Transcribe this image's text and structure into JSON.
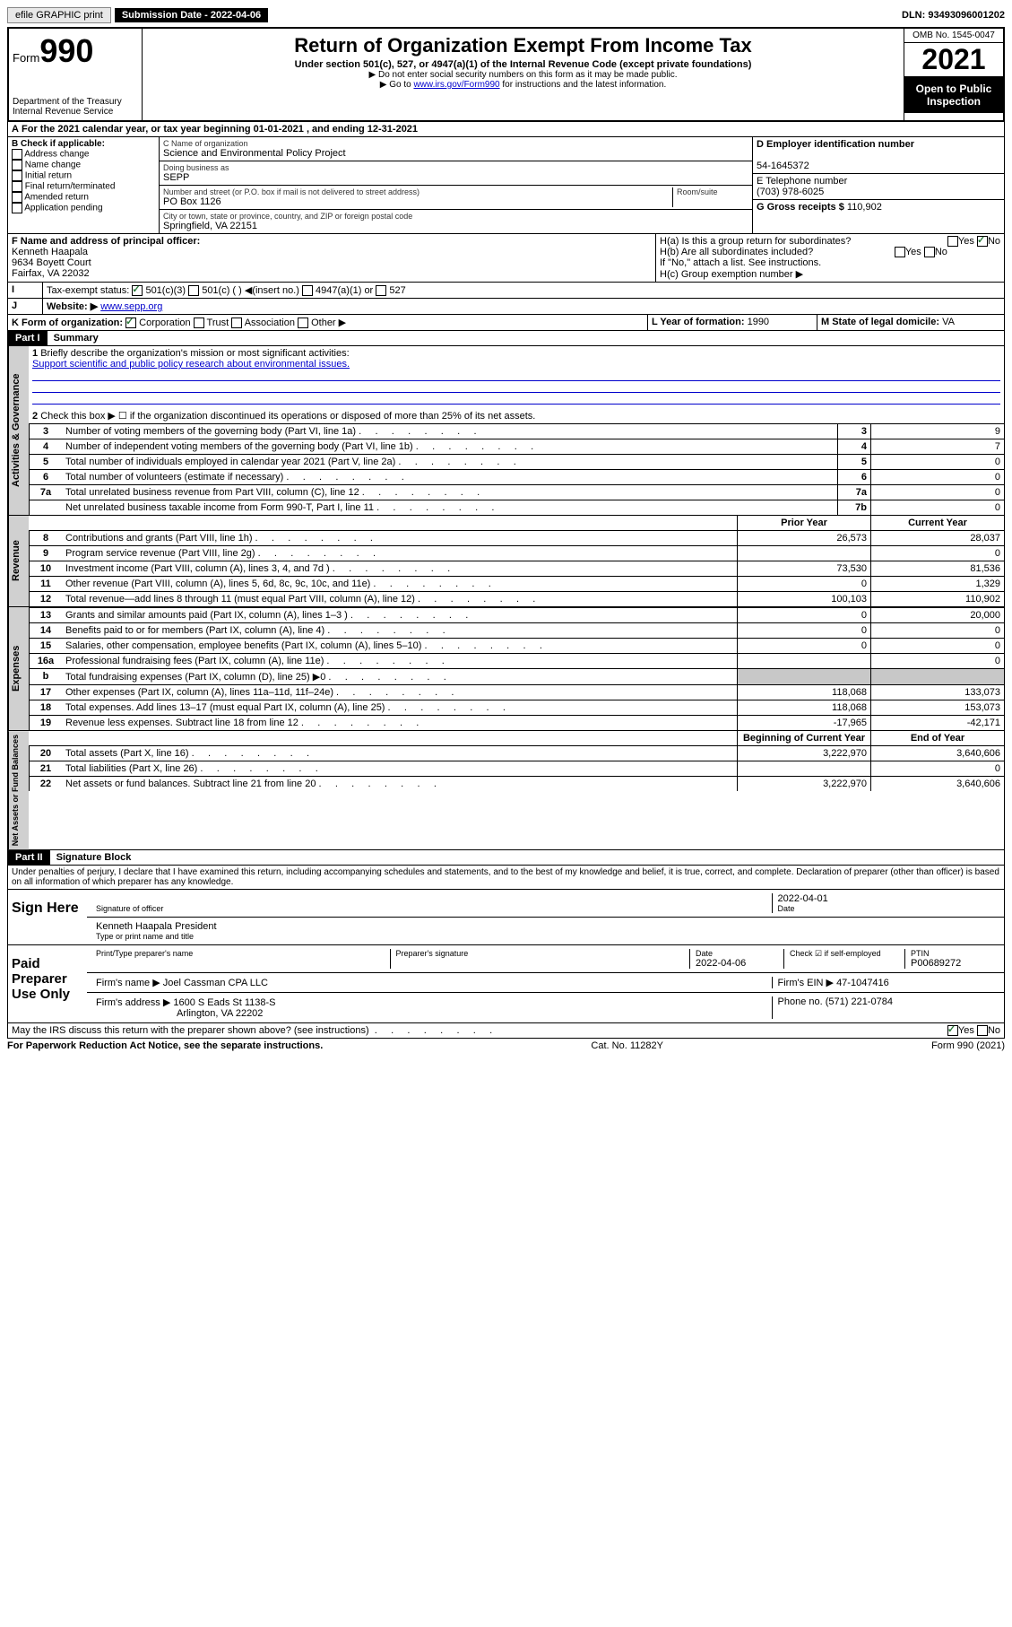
{
  "topbar": {
    "efile": "efile GRAPHIC print",
    "submission": "Submission Date - 2022-04-06",
    "dln": "DLN: 93493096001202"
  },
  "header": {
    "form_label": "Form",
    "form_no": "990",
    "title": "Return of Organization Exempt From Income Tax",
    "subtitle": "Under section 501(c), 527, or 4947(a)(1) of the Internal Revenue Code (except private foundations)",
    "note1": "▶ Do not enter social security numbers on this form as it may be made public.",
    "note2_pre": "▶ Go to ",
    "note2_link": "www.irs.gov/Form990",
    "note2_post": " for instructions and the latest information.",
    "dept": "Department of the Treasury",
    "irs": "Internal Revenue Service",
    "omb": "OMB No. 1545-0047",
    "year": "2021",
    "open": "Open to Public Inspection"
  },
  "lineA": "For the 2021 calendar year, or tax year beginning 01-01-2021   , and ending 12-31-2021",
  "boxB": {
    "title": "B Check if applicable:",
    "items": [
      "Address change",
      "Name change",
      "Initial return",
      "Final return/terminated",
      "Amended return",
      "Application pending"
    ]
  },
  "boxC": {
    "label_name": "C Name of organization",
    "name": "Science and Environmental Policy Project",
    "dba_label": "Doing business as",
    "dba": "SEPP",
    "street_label": "Number and street (or P.O. box if mail is not delivered to street address)",
    "room_label": "Room/suite",
    "street": "PO Box 1126",
    "city_label": "City or town, state or province, country, and ZIP or foreign postal code",
    "city": "Springfield, VA  22151"
  },
  "boxD": {
    "label": "D Employer identification number",
    "value": "54-1645372"
  },
  "boxE": {
    "label": "E Telephone number",
    "value": "(703) 978-6025"
  },
  "boxG": {
    "label": "G Gross receipts $",
    "value": "110,902"
  },
  "boxF": {
    "label": "F Name and address of principal officer:",
    "name": "Kenneth Haapala",
    "addr1": "9634 Boyett Court",
    "addr2": "Fairfax, VA  22032"
  },
  "boxH": {
    "a": "H(a)  Is this a group return for subordinates?",
    "b": "H(b)  Are all subordinates included?",
    "note": "If \"No,\" attach a list. See instructions.",
    "c": "H(c)  Group exemption number ▶"
  },
  "lineI": {
    "label": "Tax-exempt status:",
    "opts": [
      "501(c)(3)",
      "501(c) (   ) ◀(insert no.)",
      "4947(a)(1) or",
      "527"
    ]
  },
  "lineJ": {
    "label": "Website: ▶",
    "value": "www.sepp.org"
  },
  "lineK": {
    "label": "K Form of organization:",
    "opts": [
      "Corporation",
      "Trust",
      "Association",
      "Other ▶"
    ]
  },
  "lineL": {
    "label": "L Year of formation:",
    "value": "1990"
  },
  "lineM": {
    "label": "M State of legal domicile:",
    "value": "VA"
  },
  "part1": {
    "header": "Part I",
    "title": "Summary",
    "q1a": "Briefly describe the organization's mission or most significant activities:",
    "q1b": "Support scientific and public policy research about environmental issues.",
    "q2": "Check this box ▶ ☐  if the organization discontinued its operations or disposed of more than 25% of its net assets.",
    "rows_ag": [
      {
        "n": "3",
        "t": "Number of voting members of the governing body (Part VI, line 1a)",
        "ln": "3",
        "v": "9"
      },
      {
        "n": "4",
        "t": "Number of independent voting members of the governing body (Part VI, line 1b)",
        "ln": "4",
        "v": "7"
      },
      {
        "n": "5",
        "t": "Total number of individuals employed in calendar year 2021 (Part V, line 2a)",
        "ln": "5",
        "v": "0"
      },
      {
        "n": "6",
        "t": "Total number of volunteers (estimate if necessary)",
        "ln": "6",
        "v": "0"
      },
      {
        "n": "7a",
        "t": "Total unrelated business revenue from Part VIII, column (C), line 12",
        "ln": "7a",
        "v": "0"
      },
      {
        "n": "",
        "t": "Net unrelated business taxable income from Form 990-T, Part I, line 11",
        "ln": "7b",
        "v": "0"
      }
    ],
    "col_prior": "Prior Year",
    "col_current": "Current Year",
    "rows_rev": [
      {
        "n": "8",
        "t": "Contributions and grants (Part VIII, line 1h)",
        "p": "26,573",
        "c": "28,037"
      },
      {
        "n": "9",
        "t": "Program service revenue (Part VIII, line 2g)",
        "p": "",
        "c": "0"
      },
      {
        "n": "10",
        "t": "Investment income (Part VIII, column (A), lines 3, 4, and 7d )",
        "p": "73,530",
        "c": "81,536"
      },
      {
        "n": "11",
        "t": "Other revenue (Part VIII, column (A), lines 5, 6d, 8c, 9c, 10c, and 11e)",
        "p": "0",
        "c": "1,329"
      },
      {
        "n": "12",
        "t": "Total revenue—add lines 8 through 11 (must equal Part VIII, column (A), line 12)",
        "p": "100,103",
        "c": "110,902"
      }
    ],
    "rows_exp": [
      {
        "n": "13",
        "t": "Grants and similar amounts paid (Part IX, column (A), lines 1–3 )",
        "p": "0",
        "c": "20,000"
      },
      {
        "n": "14",
        "t": "Benefits paid to or for members (Part IX, column (A), line 4)",
        "p": "0",
        "c": "0"
      },
      {
        "n": "15",
        "t": "Salaries, other compensation, employee benefits (Part IX, column (A), lines 5–10)",
        "p": "0",
        "c": "0"
      },
      {
        "n": "16a",
        "t": "Professional fundraising fees (Part IX, column (A), line 11e)",
        "p": "",
        "c": "0"
      },
      {
        "n": "b",
        "t": "Total fundraising expenses (Part IX, column (D), line 25) ▶0",
        "p": "",
        "c": "",
        "shade": true
      },
      {
        "n": "17",
        "t": "Other expenses (Part IX, column (A), lines 11a–11d, 11f–24e)",
        "p": "118,068",
        "c": "133,073"
      },
      {
        "n": "18",
        "t": "Total expenses. Add lines 13–17 (must equal Part IX, column (A), line 25)",
        "p": "118,068",
        "c": "153,073"
      },
      {
        "n": "19",
        "t": "Revenue less expenses. Subtract line 18 from line 12",
        "p": "-17,965",
        "c": "-42,171"
      }
    ],
    "col_begin": "Beginning of Current Year",
    "col_end": "End of Year",
    "rows_net": [
      {
        "n": "20",
        "t": "Total assets (Part X, line 16)",
        "p": "3,222,970",
        "c": "3,640,606"
      },
      {
        "n": "21",
        "t": "Total liabilities (Part X, line 26)",
        "p": "",
        "c": "0"
      },
      {
        "n": "22",
        "t": "Net assets or fund balances. Subtract line 21 from line 20",
        "p": "3,222,970",
        "c": "3,640,606"
      }
    ],
    "vtabs": {
      "ag": "Activities & Governance",
      "rev": "Revenue",
      "exp": "Expenses",
      "net": "Net Assets or Fund Balances"
    }
  },
  "part2": {
    "header": "Part II",
    "title": "Signature Block",
    "decl": "Under penalties of perjury, I declare that I have examined this return, including accompanying schedules and statements, and to the best of my knowledge and belief, it is true, correct, and complete. Declaration of preparer (other than officer) is based on all information of which preparer has any knowledge.",
    "sign_here": "Sign Here",
    "sig_officer": "Signature of officer",
    "sig_date": "2022-04-01",
    "date_label": "Date",
    "officer_name": "Kenneth Haapala  President",
    "officer_label": "Type or print name and title",
    "paid_prep": "Paid Preparer Use Only",
    "prep_name_label": "Print/Type preparer's name",
    "prep_sig_label": "Preparer's signature",
    "prep_date_label": "Date",
    "prep_date": "2022-04-06",
    "check_label": "Check ☑ if self-employed",
    "ptin_label": "PTIN",
    "ptin": "P00689272",
    "firm_name_label": "Firm's name    ▶",
    "firm_name": "Joel Cassman CPA LLC",
    "firm_ein_label": "Firm's EIN ▶",
    "firm_ein": "47-1047416",
    "firm_addr_label": "Firm's address ▶",
    "firm_addr1": "1600 S Eads St 1138-S",
    "firm_addr2": "Arlington, VA  22202",
    "phone_label": "Phone no.",
    "phone": "(571) 221-0784",
    "discuss": "May the IRS discuss this return with the preparer shown above? (see instructions)"
  },
  "footer": {
    "left": "For Paperwork Reduction Act Notice, see the separate instructions.",
    "mid": "Cat. No. 11282Y",
    "right": "Form 990 (2021)"
  }
}
